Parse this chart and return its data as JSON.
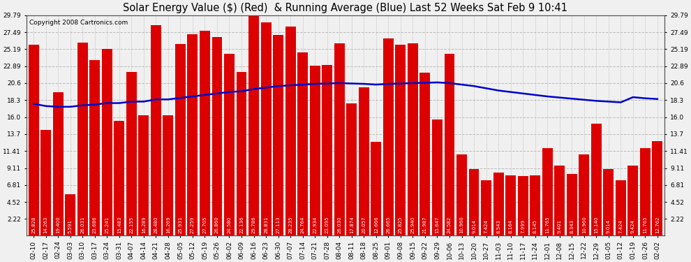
{
  "title": "Solar Energy Value ($) (Red)  & Running Average (Blue) Last 52 Weeks Sat Feb 9 10:41",
  "copyright": "Copyright 2008 Cartronics.com",
  "dates": [
    "02-10",
    "02-17",
    "02-24",
    "03-03",
    "03-10",
    "03-17",
    "03-24",
    "03-31",
    "04-07",
    "04-14",
    "04-21",
    "04-28",
    "05-05",
    "05-12",
    "05-19",
    "05-26",
    "06-02",
    "06-09",
    "06-16",
    "06-23",
    "06-30",
    "07-07",
    "07-14",
    "07-21",
    "07-28",
    "08-04",
    "08-11",
    "08-18",
    "08-25",
    "09-01",
    "09-08",
    "09-15",
    "09-22",
    "09-29",
    "10-06",
    "10-13",
    "10-20",
    "10-27",
    "11-03",
    "11-10",
    "11-17",
    "11-24",
    "12-01",
    "12-08",
    "12-15",
    "12-22",
    "12-29",
    "01-05",
    "01-12",
    "01-19",
    "01-26",
    "02-02"
  ],
  "bar_values": [
    25.828,
    14.263,
    19.4,
    5.591,
    26.031,
    23.686,
    25.241,
    15.483,
    22.155,
    16.289,
    28.48,
    16.269,
    25.931,
    27.259,
    27.705,
    26.86,
    24.58,
    22.136,
    29.786,
    28.831,
    27.113,
    28.235,
    24.764,
    22.934,
    23.095,
    26.03,
    17.874,
    20.057,
    12.666,
    26.665,
    25.825,
    25.94,
    21.987,
    15.647,
    24.582,
    10.96,
    9.014,
    7.424,
    8.543,
    8.164,
    7.999,
    8.145,
    11.765,
    9.401,
    8.343,
    10.96,
    15.14,
    9.014,
    7.424,
    9.424,
    11.765,
    12.762
  ],
  "running_avg": [
    17.8,
    17.5,
    17.4,
    17.4,
    17.6,
    17.7,
    17.9,
    17.9,
    18.1,
    18.1,
    18.4,
    18.4,
    18.6,
    18.8,
    19.0,
    19.2,
    19.4,
    19.5,
    19.8,
    20.0,
    20.2,
    20.3,
    20.4,
    20.5,
    20.55,
    20.6,
    20.55,
    20.5,
    20.4,
    20.5,
    20.55,
    20.6,
    20.65,
    20.7,
    20.6,
    20.4,
    20.2,
    19.9,
    19.6,
    19.4,
    19.2,
    19.0,
    18.8,
    18.65,
    18.5,
    18.35,
    18.2,
    18.1,
    18.0,
    18.7,
    18.55,
    18.45
  ],
  "yticks": [
    2.22,
    4.52,
    6.81,
    9.11,
    11.41,
    13.7,
    16.0,
    18.3,
    20.6,
    22.89,
    25.19,
    27.49,
    29.79
  ],
  "ymin": 0.0,
  "ymax": 29.79,
  "yaxis_min_display": 2.22,
  "bar_color": "#dd0000",
  "line_color": "#0000cc",
  "bg_color": "#f0f0f0",
  "plot_bg_color": "#f0f0f0",
  "grid_color": "#bbbbbb",
  "title_fontsize": 10.5,
  "copyright_fontsize": 6.5,
  "tick_fontsize": 6.5,
  "bar_label_fontsize": 5.0,
  "line_width": 1.8
}
